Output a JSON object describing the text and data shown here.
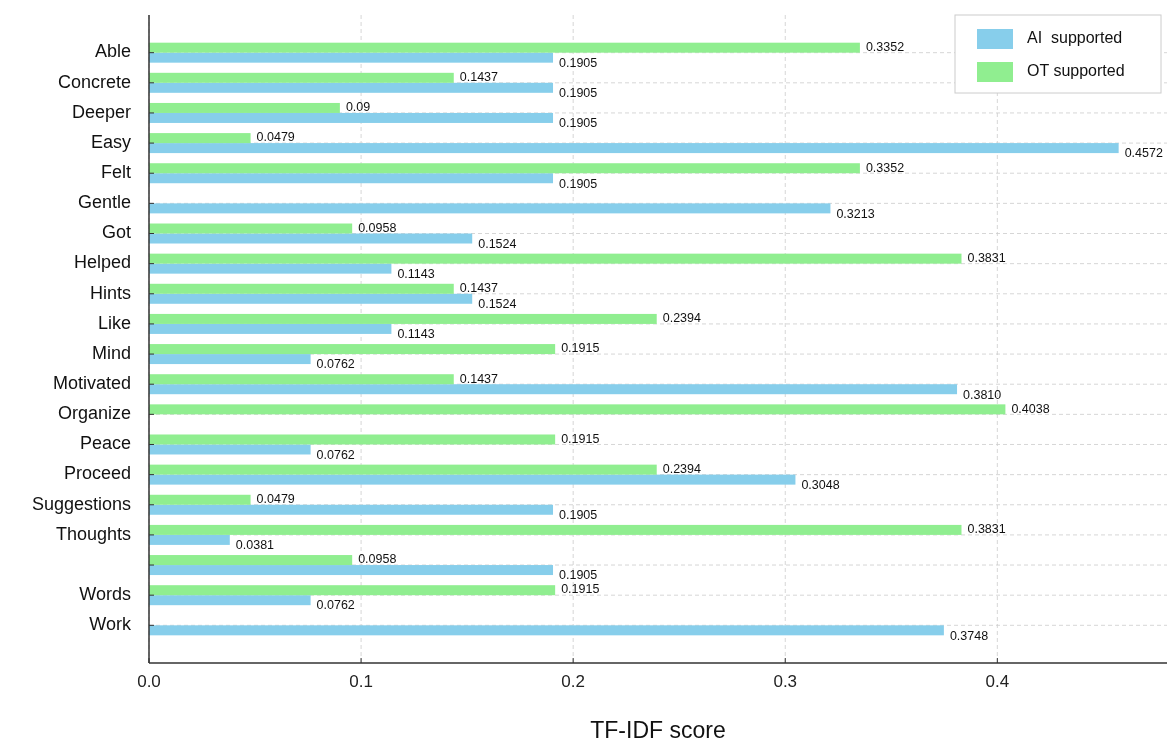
{
  "chart_data": {
    "type": "bar",
    "orientation": "horizontal",
    "xlabel": "TF-IDF score",
    "categories": [
      "Able",
      "Concrete",
      "Deeper",
      "Easy",
      "Felt",
      "Gentle",
      "Got",
      "Helped",
      "Hints",
      "Like",
      "Mind",
      "Motivated",
      "Organize",
      "Peace",
      "Proceed",
      "Suggestions",
      "Thoughts",
      null,
      "Words",
      "Work"
    ],
    "series": [
      {
        "name": "AI  supported",
        "color": "#87ceeb",
        "values": [
          0.1905,
          0.1905,
          0.1905,
          0.4572,
          0.1905,
          0.3213,
          0.1524,
          0.1143,
          0.1524,
          0.1143,
          0.0762,
          0.381,
          null,
          0.0762,
          0.3048,
          0.1905,
          0.0381,
          0.1905,
          0.0762,
          0.3748
        ],
        "value_labels": [
          "0.1905",
          "0.1905",
          "0.1905",
          "0.4572",
          "0.1905",
          "0.3213",
          "0.1524",
          "0.1143",
          "0.1524",
          "0.1143",
          "0.0762",
          "0.3810",
          null,
          "0.0762",
          "0.3048",
          "0.1905",
          "0.0381",
          "0.1905",
          "0.0762",
          "0.3748"
        ]
      },
      {
        "name": "OT supported",
        "color": "#90ee90",
        "values": [
          0.3352,
          0.1437,
          0.09,
          0.0479,
          0.3352,
          null,
          0.0958,
          0.3831,
          0.1437,
          0.2394,
          0.1915,
          0.1437,
          0.4038,
          0.1915,
          0.2394,
          0.0479,
          0.3831,
          0.0958,
          0.1915,
          null
        ],
        "value_labels": [
          "0.3352",
          "0.1437",
          "0.09",
          "0.0479",
          "0.3352",
          null,
          "0.0958",
          "0.3831",
          "0.1437",
          "0.2394",
          "0.1915",
          "0.1437",
          "0.4038",
          "0.1915",
          "0.2394",
          "0.0479",
          "0.3831",
          "0.0958",
          "0.1915",
          null
        ]
      }
    ],
    "xlim": [
      0,
      0.48
    ],
    "xticks": [
      {
        "value": 0,
        "label": "0.0"
      },
      0.1,
      0.2,
      0.3,
      0.4
    ],
    "grid": true,
    "legend": "top right"
  }
}
